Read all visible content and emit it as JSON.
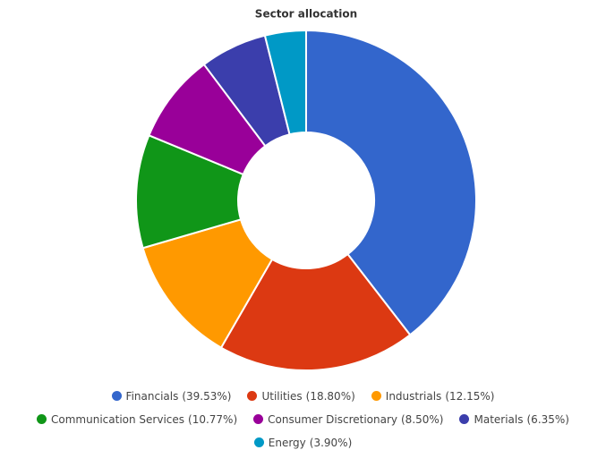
{
  "chart_data": {
    "type": "donut",
    "title": "Sector allocation",
    "categories": [
      "Financials",
      "Utilities",
      "Industrials",
      "Communication Services",
      "Consumer Discretionary",
      "Materials",
      "Energy"
    ],
    "values": [
      39.53,
      18.8,
      12.15,
      10.77,
      8.5,
      6.35,
      3.9
    ],
    "value_labels": [
      "(39.53%)",
      "(18.80%)",
      "(12.15%)",
      "(10.77%)",
      "(8.50%)",
      "(6.35%)",
      "(3.90%)"
    ],
    "colors": [
      "#3366cc",
      "#dc3912",
      "#ff9900",
      "#109618",
      "#990099",
      "#3b3eac",
      "#0099c6"
    ],
    "legend": "bottom"
  }
}
